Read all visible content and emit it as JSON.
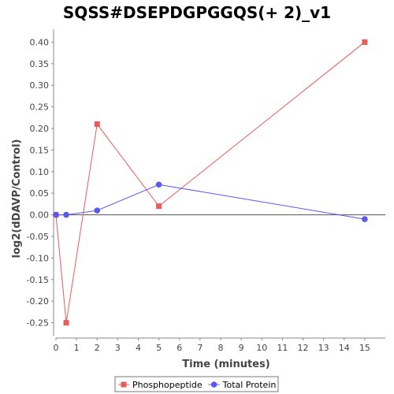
{
  "chart_data": {
    "type": "line",
    "title": "SQSS#DSEPDGPGGQS(+ 2)_v1",
    "xlabel": "Time (minutes)",
    "ylabel": "log2(dDAVP/Control)",
    "xlim": [
      0,
      16
    ],
    "ylim": [
      -0.28,
      0.43
    ],
    "xticks": [
      0,
      1,
      2,
      3,
      4,
      5,
      6,
      7,
      8,
      9,
      10,
      11,
      12,
      13,
      14,
      15
    ],
    "yticks": [
      -0.25,
      -0.2,
      -0.15,
      -0.1,
      -0.05,
      0.0,
      0.05,
      0.1,
      0.15,
      0.2,
      0.25,
      0.3,
      0.35,
      0.4
    ],
    "ytick_labels": [
      "-0.25",
      "-0.20",
      "-0.15",
      "-0.10",
      "-0.05",
      "0.00",
      "0.05",
      "0.10",
      "0.15",
      "0.20",
      "0.25",
      "0.30",
      "0.35",
      "0.40"
    ],
    "grid": false,
    "legend_position": "bottom",
    "series": [
      {
        "name": "Phosphopeptide",
        "color": "#e85c5c",
        "marker": "square",
        "x": [
          0,
          0.5,
          2,
          5,
          15
        ],
        "y": [
          0.0,
          -0.25,
          0.21,
          0.02,
          0.4
        ]
      },
      {
        "name": "Total Protein",
        "color": "#5a5aee",
        "marker": "circle",
        "x": [
          0,
          0.5,
          2,
          5,
          15
        ],
        "y": [
          0.0,
          0.0,
          0.01,
          0.07,
          -0.01
        ]
      }
    ]
  }
}
